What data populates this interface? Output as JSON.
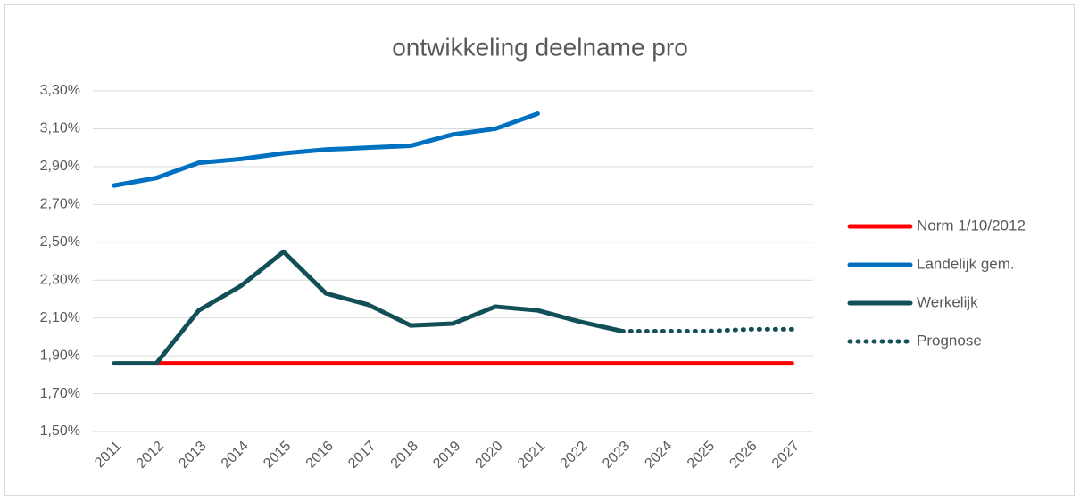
{
  "chart_data": {
    "type": "line",
    "title": "ontwikkeling deelname pro",
    "categories": [
      "2011",
      "2012",
      "2013",
      "2014",
      "2015",
      "2016",
      "2017",
      "2018",
      "2019",
      "2020",
      "2021",
      "2022",
      "2023",
      "2024",
      "2025",
      "2026",
      "2027"
    ],
    "series": [
      {
        "name": "Norm 1/10/2012",
        "color": "#ff0000",
        "style": "solid",
        "values": [
          null,
          1.86,
          1.86,
          1.86,
          1.86,
          1.86,
          1.86,
          1.86,
          1.86,
          1.86,
          1.86,
          1.86,
          1.86,
          1.86,
          1.86,
          1.86,
          1.86
        ]
      },
      {
        "name": "Landelijk gem.",
        "color": "#0070c0",
        "style": "solid",
        "values": [
          2.8,
          2.84,
          2.92,
          2.94,
          2.97,
          2.99,
          3.0,
          3.01,
          3.07,
          3.1,
          3.18,
          null,
          null,
          null,
          null,
          null,
          null
        ]
      },
      {
        "name": "Werkelijk",
        "color": "#124f57",
        "style": "solid",
        "values": [
          1.86,
          1.86,
          2.14,
          2.27,
          2.45,
          2.23,
          2.17,
          2.06,
          2.07,
          2.16,
          2.14,
          2.08,
          2.03,
          null,
          null,
          null,
          null
        ]
      },
      {
        "name": "Prognose",
        "color": "#124f57",
        "style": "dotted",
        "values": [
          null,
          null,
          null,
          null,
          null,
          null,
          null,
          null,
          null,
          null,
          null,
          null,
          2.03,
          2.03,
          2.03,
          2.04,
          2.04
        ]
      }
    ],
    "ylim": [
      1.5,
      3.3
    ],
    "yticks": [
      {
        "value": 1.5,
        "label": "1,50%"
      },
      {
        "value": 1.7,
        "label": "1,70%"
      },
      {
        "value": 1.9,
        "label": "1,90%"
      },
      {
        "value": 2.1,
        "label": "2,10%"
      },
      {
        "value": 2.3,
        "label": "2,30%"
      },
      {
        "value": 2.5,
        "label": "2,50%"
      },
      {
        "value": 2.7,
        "label": "2,70%"
      },
      {
        "value": 2.9,
        "label": "2,90%"
      },
      {
        "value": 3.1,
        "label": "3,10%"
      },
      {
        "value": 3.3,
        "label": "3,30%"
      }
    ],
    "grid": true,
    "legend": "right"
  }
}
